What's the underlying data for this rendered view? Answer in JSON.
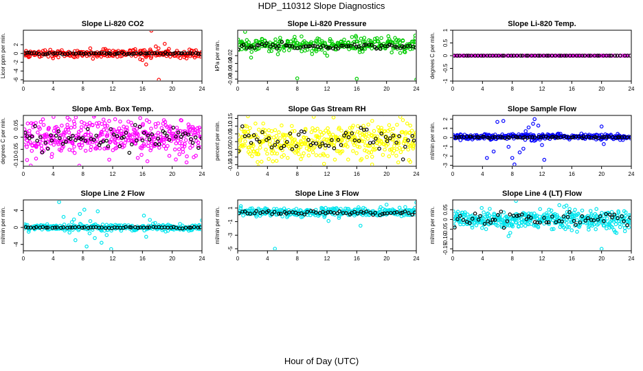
{
  "figure": {
    "title": "HDP_110312  Slope Diagnostics",
    "xlabel": "Hour of Day (UTC)"
  },
  "chart_data": [
    {
      "type": "scatter",
      "title": "Slope Li-820 CO2",
      "ylabel": "Licor ppm per min.",
      "xlim": [
        0,
        24
      ],
      "ylim": [
        -6.3,
        5.3
      ],
      "x_ticks": [
        0,
        4,
        8,
        12,
        16,
        20,
        24
      ],
      "y_ticks": [
        2,
        0,
        -2,
        -4,
        -6
      ],
      "series": [
        {
          "name": "all",
          "color": "#ff0000",
          "n": 260,
          "spread": 0.45,
          "center": 0.0,
          "outliers": [
            [
              17.2,
              5.2
            ],
            [
              18.2,
              -6.0
            ],
            [
              16.5,
              -2.5
            ],
            [
              19.0,
              2.2
            ],
            [
              16.0,
              -1.5
            ],
            [
              17.8,
              1.6
            ]
          ]
        },
        {
          "name": "average",
          "color": "#000000",
          "n": 70,
          "spread": 0.12,
          "center": 0.0
        }
      ]
    },
    {
      "type": "scatter",
      "title": "Slope Li-820 Pressure",
      "ylabel": "kPa per min.",
      "xlim": [
        0,
        24
      ],
      "ylim": [
        -0.085,
        0.045
      ],
      "x_ticks": [
        0,
        4,
        8,
        12,
        16,
        20,
        24
      ],
      "y_ticks": [
        -0.02,
        -0.04,
        -0.06,
        -0.08
      ],
      "series": [
        {
          "name": "all",
          "color": "#00cc00",
          "n": 300,
          "spread": 0.009,
          "center": 0.008,
          "outliers": [
            [
              8.0,
              -0.078
            ],
            [
              16.0,
              -0.079
            ],
            [
              24.0,
              -0.081
            ],
            [
              1.0,
              0.041
            ],
            [
              1.8,
              -0.025
            ]
          ]
        },
        {
          "name": "average",
          "color": "#000000",
          "n": 70,
          "spread": 0.004,
          "center": 0.004
        }
      ]
    },
    {
      "type": "scatter",
      "title": "Slope Li-820 Temp.",
      "ylabel": "degrees C per min.",
      "xlim": [
        0,
        24
      ],
      "ylim": [
        -1.0,
        1.0
      ],
      "x_ticks": [
        0,
        4,
        8,
        12,
        16,
        20,
        24
      ],
      "y_ticks": [
        1.0,
        0.5,
        0.0,
        -0.5,
        -1.0
      ],
      "series": [
        {
          "name": "all",
          "color": "#ff00ff",
          "n": 150,
          "spread": 0.0,
          "center": 0.0,
          "outliers": []
        },
        {
          "name": "average",
          "color": "#000000",
          "n": 60,
          "spread": 0.0,
          "center": 0.0
        }
      ]
    },
    {
      "type": "scatter",
      "title": "Slope Amb. Box Temp.",
      "ylabel": "degrees C per min.",
      "xlim": [
        0,
        24
      ],
      "ylim": [
        -0.12,
        0.09
      ],
      "x_ticks": [
        0,
        4,
        8,
        12,
        16,
        20,
        24
      ],
      "y_ticks": [
        0.05,
        0.0,
        -0.05,
        -0.1
      ],
      "series": [
        {
          "name": "all",
          "color": "#ff00ff",
          "n": 420,
          "spread": 0.04,
          "center": 0.0,
          "outliers": []
        },
        {
          "name": "average",
          "color": "#000000",
          "n": 70,
          "spread": 0.025,
          "center": 0.0
        }
      ]
    },
    {
      "type": "scatter",
      "title": "Slope Gas Stream RH",
      "ylabel": "percent per min.",
      "xlim": [
        0,
        24
      ],
      "ylim": [
        -0.16,
        0.17
      ],
      "x_ticks": [
        0,
        4,
        8,
        12,
        16,
        20,
        24
      ],
      "y_ticks": [
        0.15,
        0.1,
        0.05,
        0.0,
        -0.05,
        -0.1,
        -0.15
      ],
      "series": [
        {
          "name": "all",
          "color": "#ffff00",
          "n": 420,
          "spread": 0.06,
          "center": 0.0,
          "outliers": []
        },
        {
          "name": "average",
          "color": "#000000",
          "n": 60,
          "spread": 0.04,
          "center": 0.0
        }
      ]
    },
    {
      "type": "scatter",
      "title": "Slope Sample Flow",
      "ylabel": "ml/min per min.",
      "xlim": [
        0,
        24
      ],
      "ylim": [
        -3.1,
        2.4
      ],
      "x_ticks": [
        0,
        4,
        8,
        12,
        16,
        20,
        24
      ],
      "y_ticks": [
        2,
        1,
        0,
        -1,
        -2,
        -3
      ],
      "series": [
        {
          "name": "all",
          "color": "#0000ff",
          "n": 300,
          "spread": 0.15,
          "center": 0.1,
          "outliers": [
            [
              5.5,
              -1.5
            ],
            [
              6.0,
              1.7
            ],
            [
              6.8,
              1.8
            ],
            [
              7.5,
              -1.0
            ],
            [
              8.0,
              -2.2
            ],
            [
              8.3,
              -2.9
            ],
            [
              9.0,
              -1.6
            ],
            [
              9.5,
              -1.2
            ],
            [
              10.2,
              1.1
            ],
            [
              10.8,
              1.5
            ],
            [
              11.0,
              2.0
            ],
            [
              11.5,
              1.3
            ],
            [
              12.0,
              -0.8
            ],
            [
              12.3,
              -2.4
            ],
            [
              9.8,
              0.7
            ],
            [
              20.0,
              1.2
            ],
            [
              20.3,
              -0.7
            ],
            [
              4.6,
              -2.2
            ]
          ]
        },
        {
          "name": "average",
          "color": "#000000",
          "n": 70,
          "spread": 0.05,
          "center": 0.05
        }
      ]
    },
    {
      "type": "scatter",
      "title": "Slope Line 2 Flow",
      "ylabel": "ml/min per min.",
      "xlim": [
        0,
        24
      ],
      "ylim": [
        -5.5,
        6.5
      ],
      "x_ticks": [
        0,
        4,
        8,
        12,
        16,
        20,
        24
      ],
      "y_ticks": [
        4,
        0,
        -4
      ],
      "series": [
        {
          "name": "all",
          "color": "#00e5ee",
          "n": 300,
          "spread": 0.4,
          "center": 0.0,
          "outliers": [
            [
              4.8,
              6.0
            ],
            [
              5.4,
              2.5
            ],
            [
              6.2,
              -1.2
            ],
            [
              7.0,
              -3.0
            ],
            [
              7.6,
              3.2
            ],
            [
              8.2,
              4.2
            ],
            [
              8.5,
              -4.5
            ],
            [
              9.0,
              1.5
            ],
            [
              9.6,
              -2.5
            ],
            [
              10.0,
              3.8
            ],
            [
              10.5,
              -3.6
            ],
            [
              11.2,
              -1.8
            ],
            [
              11.8,
              -5.1
            ],
            [
              8.9,
              -1.4
            ],
            [
              16.2,
              2.8
            ],
            [
              16.5,
              -2.2
            ],
            [
              17.0,
              1.8
            ],
            [
              24.0,
              1.7
            ],
            [
              6.8,
              1.9
            ]
          ]
        },
        {
          "name": "average",
          "color": "#000000",
          "n": 60,
          "spread": 0.08,
          "center": 0.0
        }
      ]
    },
    {
      "type": "scatter",
      "title": "Slope Line 3 Flow",
      "ylabel": "ml/min per min.",
      "xlim": [
        0,
        24
      ],
      "ylim": [
        -5.3,
        2.2
      ],
      "x_ticks": [
        0,
        4,
        8,
        12,
        16,
        20,
        24
      ],
      "y_ticks": [
        1,
        -1,
        -3,
        -5
      ],
      "series": [
        {
          "name": "all",
          "color": "#00e5ee",
          "n": 320,
          "spread": 0.3,
          "center": 0.4,
          "outliers": [
            [
              5.0,
              -5.0
            ],
            [
              16.5,
              -1.6
            ],
            [
              20.0,
              1.5
            ],
            [
              24.0,
              1.8
            ],
            [
              12.2,
              -0.9
            ]
          ]
        },
        {
          "name": "average",
          "color": "#000000",
          "n": 60,
          "spread": 0.15,
          "center": 0.3
        }
      ]
    },
    {
      "type": "scatter",
      "title": "Slope Line 4 (LT) Flow",
      "ylabel": "ml/min per min.",
      "xlim": [
        0,
        24
      ],
      "ylim": [
        -0.16,
        0.1
      ],
      "x_ticks": [
        0,
        4,
        8,
        12,
        16,
        20,
        24
      ],
      "y_ticks": [
        0.05,
        0.0,
        -0.05,
        -0.1,
        -0.15
      ],
      "series": [
        {
          "name": "all",
          "color": "#00e5ee",
          "n": 420,
          "spread": 0.025,
          "center": 0.0,
          "outliers": [
            [
              8.5,
              0.095
            ],
            [
              20.0,
              -0.15
            ],
            [
              7.5,
              -0.085
            ]
          ]
        },
        {
          "name": "average",
          "color": "#000000",
          "n": 60,
          "spread": 0.02,
          "center": 0.0
        }
      ]
    }
  ]
}
